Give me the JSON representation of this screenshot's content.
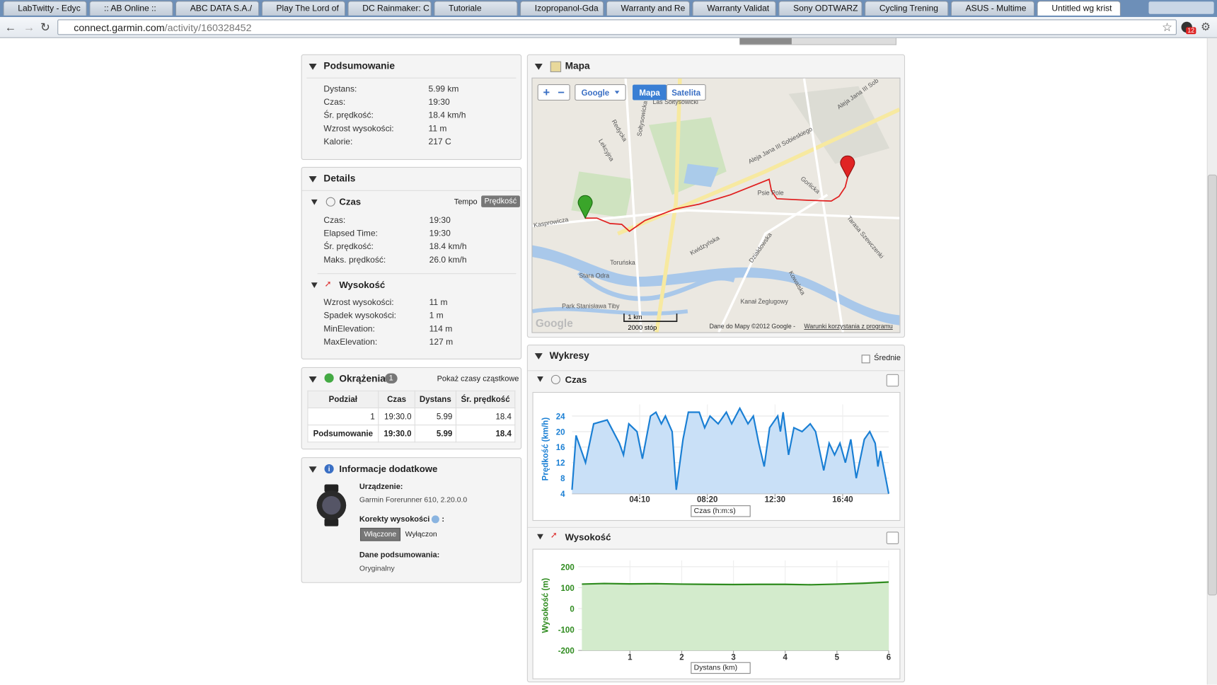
{
  "browser": {
    "tabs": [
      "LabTwitty - Edyc",
      ":: AB Online ::",
      "ABC DATA S.A./",
      "Play The Lord of",
      "DC Rainmaker: C",
      "Tutoriale",
      "Izopropanol-Gda",
      "Warranty and Re",
      "Warranty Validat",
      "Sony ODTWARZ",
      "Cycling Trening",
      "ASUS - Multime",
      "Untitled wg krist"
    ],
    "url_host": "connect.garmin.com",
    "url_path": "/activity/160328452",
    "badge": "12"
  },
  "summary": {
    "title": "Podsumowanie",
    "rows": [
      [
        "Dystans:",
        "5.99 km"
      ],
      [
        "Czas:",
        "19:30"
      ],
      [
        "Śr. prędkość:",
        "18.4 km/h"
      ],
      [
        "Wzrost wysokości:",
        "11 m"
      ],
      [
        "Kalorie:",
        "217 C"
      ]
    ]
  },
  "details": {
    "title": "Details",
    "time_section": {
      "title": "Czas",
      "toggle": [
        "Tempo",
        "Prędkość"
      ],
      "rows": [
        [
          "Czas:",
          "19:30"
        ],
        [
          "Elapsed Time:",
          "19:30"
        ],
        [
          "Śr. prędkość:",
          "18.4 km/h"
        ],
        [
          "Maks. prędkość:",
          "26.0 km/h"
        ]
      ]
    },
    "elevation_section": {
      "title": "Wysokość",
      "rows": [
        [
          "Wzrost wysokości:",
          "11 m"
        ],
        [
          "Spadek wysokości:",
          "1 m"
        ],
        [
          "MinElevation:",
          "114 m"
        ],
        [
          "MaxElevation:",
          "127 m"
        ]
      ]
    }
  },
  "laps": {
    "title": "Okrążenia",
    "count": "1",
    "link": "Pokaż czasy cząstkowe",
    "header": [
      "Podział",
      "Czas",
      "Dystans",
      "Śr. prędkość"
    ],
    "rows": [
      [
        "1",
        "19:30.0",
        "5.99",
        "18.4"
      ],
      [
        "Podsumowanie",
        "19:30.0",
        "5.99",
        "18.4"
      ]
    ]
  },
  "info": {
    "title": "Informacje dodatkowe",
    "device_label": "Urządzenie:",
    "device": "Garmin Forerunner 610, 2.20.0.0",
    "correction_label": "Korekty wysokości",
    "correction_suffix": ":",
    "on": "Włączone",
    "off": "Wyłączon",
    "summary_label": "Dane podsumowania:",
    "summary_value": "Oryginalny"
  },
  "map": {
    "title": "Mapa",
    "provider": "Google",
    "modes": [
      "Mapa",
      "Satelita"
    ],
    "scale": [
      "1 km",
      "2000 stóp"
    ],
    "attribution": "Dane do Mapy ©2012 Google -",
    "terms": "Warunki korzystania z programu",
    "logo": "Google",
    "labels": [
      "Las Sołtysowicki",
      "Psie Pole",
      "Toruńska",
      "Kasprowicza",
      "Stara Odra",
      "Park Stanisława Tiby",
      "Kanał Żeglugowy",
      "Aleja Jana III Sobieskiego",
      "Tarasa Szewczenki",
      "Gorlicka",
      "Kwidzyńska",
      "Działdowska",
      "Kowalska",
      "Redycka",
      "Lekcyjna",
      "Sołtysowicka",
      "Aleja Jana III Sob"
    ]
  },
  "charts": {
    "title": "Wykresy",
    "averages": "Średnie",
    "speed": {
      "type": "line",
      "title": "Czas",
      "y_label": "Prędkość (km/h)",
      "x_selector": "Czas (h:m:s)",
      "color": "#1a7fd4",
      "fill": "#c9e0f7",
      "x": [
        0,
        15,
        50,
        80,
        130,
        175,
        190,
        210,
        240,
        260,
        290,
        310,
        330,
        345,
        370,
        385,
        410,
        430,
        470,
        490,
        510,
        540,
        570,
        590,
        620,
        650,
        670,
        690,
        710,
        730,
        760,
        770,
        780,
        800,
        820,
        850,
        880,
        900,
        930,
        950,
        970,
        990,
        1010,
        1030,
        1050,
        1080,
        1100,
        1120,
        1130,
        1140,
        1170
      ],
      "values": [
        5,
        19,
        12,
        22,
        23,
        17,
        14,
        22,
        20,
        13,
        24,
        25,
        22,
        24,
        20,
        5,
        18,
        25,
        25,
        21,
        24,
        22,
        25,
        22,
        26,
        22,
        24,
        17,
        11,
        21,
        24,
        20,
        25,
        14,
        21,
        20,
        22,
        20,
        10,
        17,
        14,
        17,
        12,
        18,
        8,
        18,
        20,
        17,
        11,
        15,
        4
      ],
      "xlim": [
        0,
        1170
      ],
      "ylim": [
        4,
        27
      ],
      "xticks": [
        {
          "value": 250,
          "label": "04:10"
        },
        {
          "value": 500,
          "label": "08:20"
        },
        {
          "value": 750,
          "label": "12:30"
        },
        {
          "value": 1000,
          "label": "16:40"
        }
      ],
      "yticks": [
        4,
        8,
        12,
        16,
        20,
        24
      ],
      "grid": true
    },
    "elevation": {
      "type": "line",
      "title": "Wysokość",
      "y_label": "Wysokość (m)",
      "x_selector": "Dystans (km)",
      "color": "#2e8b1e",
      "fill": "#d3ebcc",
      "x": [
        0.07,
        0.5,
        1,
        1.5,
        2,
        2.5,
        3,
        3.5,
        4,
        4.5,
        5,
        5.5,
        6
      ],
      "values": [
        117,
        120,
        118,
        119,
        117,
        116,
        115,
        116,
        116,
        114,
        117,
        121,
        127
      ],
      "xlim": [
        0,
        6
      ],
      "ylim": [
        -200,
        230
      ],
      "xticks": [
        1,
        2,
        3,
        4,
        5,
        6
      ],
      "yticks": [
        -200,
        -100,
        0,
        100,
        200
      ],
      "grid": true
    }
  }
}
